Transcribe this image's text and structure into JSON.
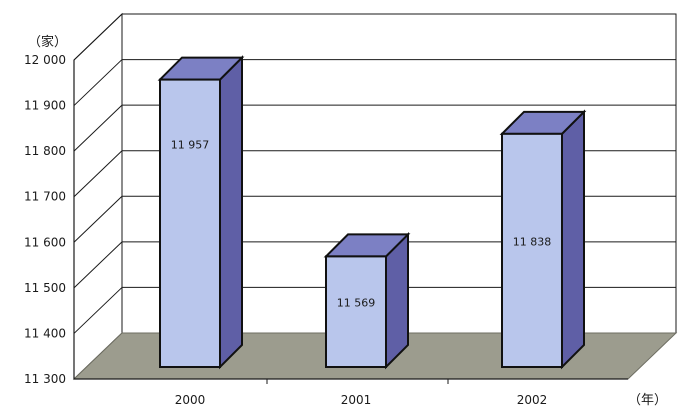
{
  "chart_data": {
    "type": "bar",
    "categories": [
      "2000",
      "2001",
      "2002"
    ],
    "values": [
      11957,
      11569,
      11838
    ],
    "value_labels": [
      "11 957",
      "11 569",
      "11 838"
    ],
    "y_unit_label": "（家）",
    "x_unit_label": "（年）",
    "ylim": [
      11300,
      12000
    ],
    "y_ticks": [
      11300,
      11400,
      11500,
      11600,
      11700,
      11800,
      11900,
      12000
    ],
    "y_tick_labels": [
      "11 300",
      "11 400",
      "11 500",
      "11 600",
      "11 700",
      "11 800",
      "11 900",
      "12 000"
    ],
    "grid": true,
    "style": "3d-bar",
    "colors": {
      "bar_front": "#b9c6ec",
      "bar_side": "#5f5fa6",
      "bar_top": "#7c80c4",
      "floor": "#9c9c8e",
      "grid": "#1a1a1a"
    }
  }
}
